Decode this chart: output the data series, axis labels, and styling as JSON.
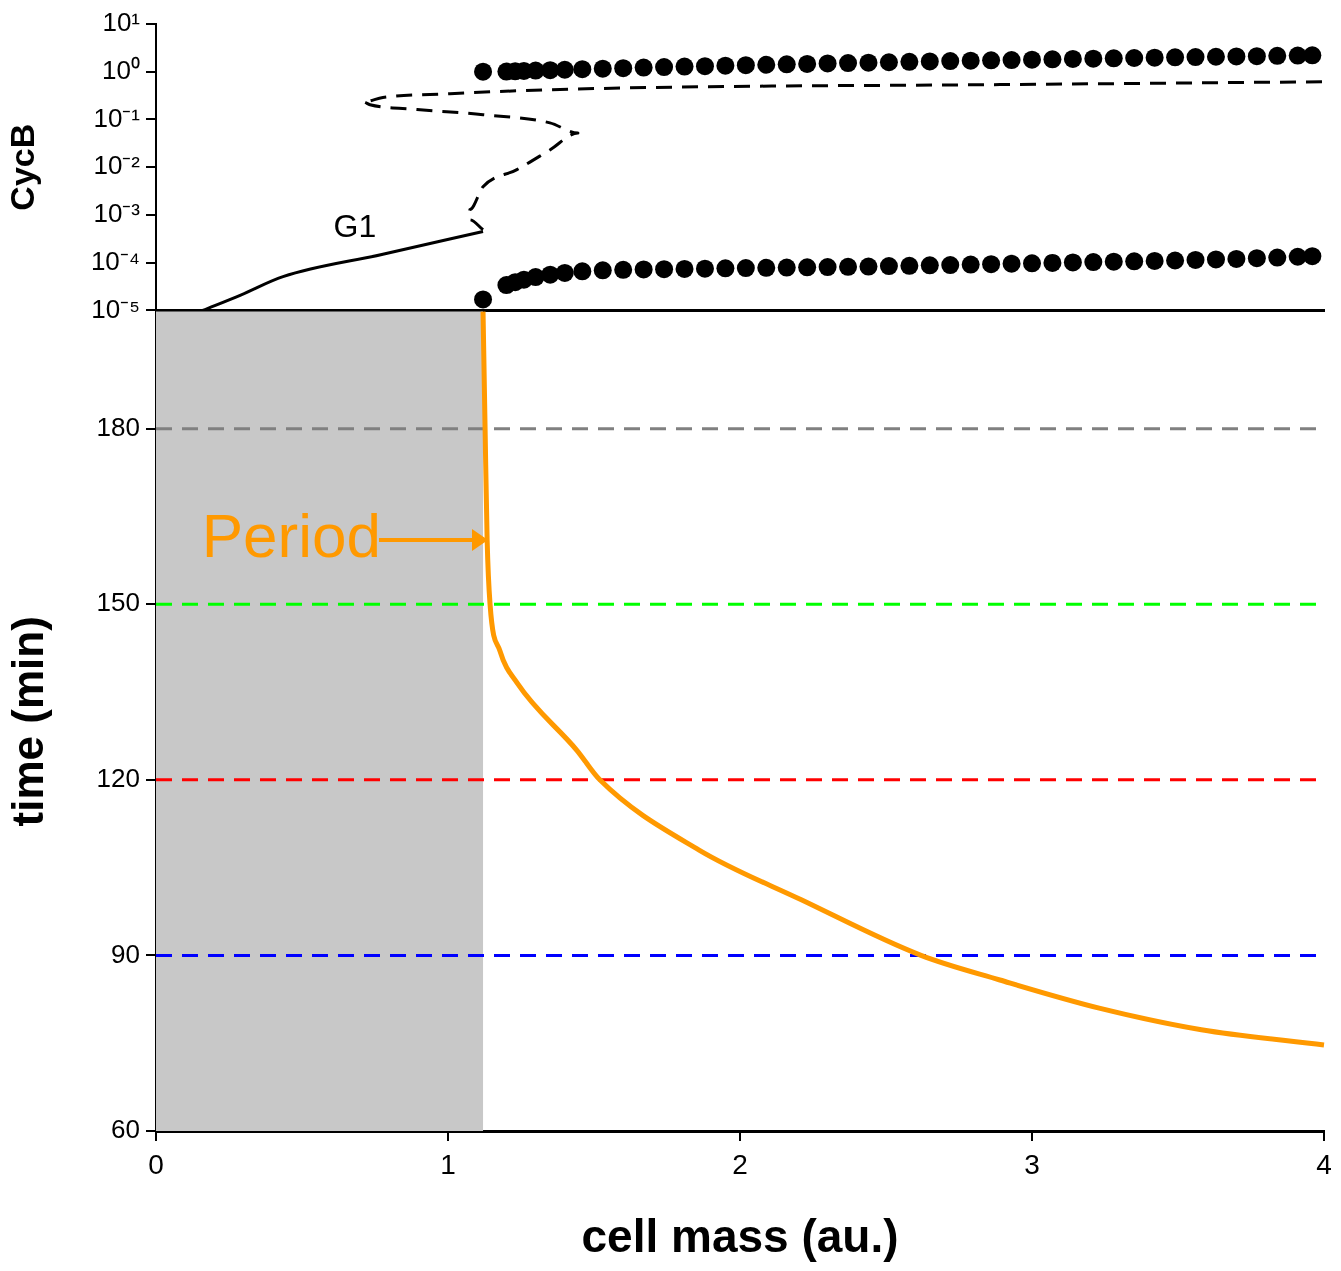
{
  "chart_data": [
    {
      "type": "line",
      "ylabel": "CycB",
      "log": "y",
      "xlim": [
        0,
        4
      ],
      "ylim": [
        1e-05,
        10
      ],
      "tick_labels": "y",
      "grid": false,
      "legend": false,
      "yticks": [
        {
          "value": 10,
          "label": "10¹"
        },
        {
          "value": 1,
          "label": "10⁰"
        },
        {
          "value": 0.1,
          "label": "10⁻¹"
        },
        {
          "value": 0.01,
          "label": "10⁻²"
        },
        {
          "value": 0.001,
          "label": "10⁻³"
        },
        {
          "value": 0.0001,
          "label": "10⁻⁴"
        },
        {
          "value": 1e-05,
          "label": "10⁻⁵"
        }
      ],
      "series": [
        {
          "type": "line",
          "name": "G1",
          "color": "#000000",
          "line_style": "solid",
          "x": [
            0.16,
            0.29,
            0.435,
            0.777,
            1.12
          ],
          "values": [
            1e-05,
            2.1e-05,
            5.1e-05,
            0.00015,
            0.00045
          ]
        },
        {
          "type": "line",
          "color": "#000000",
          "line_style": "dashed",
          "x": [
            1.12,
            1.075,
            1.075,
            1.12,
            1.236,
            1.349,
            1.445,
            1.349,
            1.12,
            0.894,
            0.733,
            0.709,
            0.777,
            1.007,
            1.236,
            1.692,
            2.89,
            4.0
          ],
          "values": [
            0.00049,
            0.00079,
            0.0013,
            0.0039,
            0.0089,
            0.023,
            0.052,
            0.085,
            0.126,
            0.162,
            0.204,
            0.234,
            0.288,
            0.347,
            0.398,
            0.468,
            0.537,
            0.617
          ]
        },
        {
          "type": "scatter",
          "color": "#000000",
          "marker": "circle",
          "x": [
            1.12,
            1.2,
            1.23,
            1.26,
            1.3,
            1.35,
            1.4,
            1.46,
            1.53,
            1.6,
            1.67,
            1.74,
            1.81,
            1.88,
            1.95,
            2.02,
            2.09,
            2.16,
            2.23,
            2.3,
            2.37,
            2.44,
            2.51,
            2.58,
            2.65,
            2.72,
            2.79,
            2.86,
            2.93,
            3.0,
            3.07,
            3.14,
            3.21,
            3.28,
            3.35,
            3.42,
            3.49,
            3.56,
            3.63,
            3.7,
            3.77,
            3.84,
            3.91,
            3.96
          ],
          "values": [
            1.0,
            1.01,
            1.02,
            1.04,
            1.06,
            1.08,
            1.1,
            1.13,
            1.16,
            1.19,
            1.22,
            1.25,
            1.28,
            1.31,
            1.34,
            1.37,
            1.4,
            1.43,
            1.46,
            1.49,
            1.52,
            1.55,
            1.58,
            1.61,
            1.64,
            1.67,
            1.7,
            1.73,
            1.76,
            1.79,
            1.82,
            1.85,
            1.88,
            1.91,
            1.94,
            1.97,
            2.0,
            2.03,
            2.06,
            2.09,
            2.12,
            2.15,
            2.18,
            2.21
          ]
        },
        {
          "type": "scatter",
          "color": "#000000",
          "marker": "circle",
          "x": [
            1.12,
            1.2,
            1.23,
            1.26,
            1.3,
            1.35,
            1.4,
            1.46,
            1.53,
            1.6,
            1.67,
            1.74,
            1.81,
            1.88,
            1.95,
            2.02,
            2.09,
            2.16,
            2.23,
            2.3,
            2.37,
            2.44,
            2.51,
            2.58,
            2.65,
            2.72,
            2.79,
            2.86,
            2.93,
            3.0,
            3.07,
            3.14,
            3.21,
            3.28,
            3.35,
            3.42,
            3.49,
            3.56,
            3.63,
            3.7,
            3.77,
            3.84,
            3.91,
            3.96
          ],
          "values": [
            1.7e-05,
            3.4e-05,
            3.9e-05,
            4.4e-05,
            5e-05,
            5.6e-05,
            6.1e-05,
            6.6e-05,
            6.9e-05,
            7.1e-05,
            7.2e-05,
            7.3e-05,
            7.4e-05,
            7.5e-05,
            7.6e-05,
            7.7e-05,
            7.8e-05,
            7.9e-05,
            8e-05,
            8.1e-05,
            8.2e-05,
            8.3e-05,
            8.5e-05,
            8.6e-05,
            8.8e-05,
            8.9e-05,
            9.1e-05,
            9.3e-05,
            9.5e-05,
            9.7e-05,
            9.9e-05,
            0.000101,
            0.000103,
            0.000105,
            0.000107,
            0.000109,
            0.000111,
            0.000114,
            0.000117,
            0.00012,
            0.000124,
            0.000128,
            0.000133,
            0.000137
          ]
        }
      ]
    },
    {
      "type": "line",
      "xlabel": "cell mass (au.)",
      "ylabel": "time (min)",
      "xlim": [
        0,
        4
      ],
      "xticks": [
        0,
        1,
        2,
        3,
        4
      ],
      "ylim": [
        60,
        200
      ],
      "yticks": [
        60,
        90,
        120,
        150,
        180
      ],
      "grid": false,
      "legend": false,
      "bands": [
        {
          "axis": "x",
          "from": 0,
          "to": 1.12,
          "color": "#c8c8c8"
        }
      ],
      "ref_lines": [
        {
          "axis": "y",
          "value": 180,
          "color": "#808080",
          "line_style": "dashed"
        },
        {
          "axis": "y",
          "value": 150,
          "color": "#00ff00",
          "line_style": "dashed"
        },
        {
          "axis": "y",
          "value": 120,
          "color": "#ff0000",
          "line_style": "dashed"
        },
        {
          "axis": "y",
          "value": 90,
          "color": "#0000ff",
          "line_style": "dashed"
        }
      ],
      "annotations": [
        {
          "text": "Period",
          "x": 1.14,
          "y": 161
        }
      ],
      "series": [
        {
          "type": "line",
          "color": "#ff9900",
          "line_style": "solid",
          "x": [
            1.12,
            1.127,
            1.134,
            1.144,
            1.178,
            1.236,
            1.442,
            1.52,
            1.86,
            2.21,
            2.62,
            2.89,
            3.23,
            3.58,
            4.0
          ],
          "values": [
            200,
            180,
            161,
            150,
            142,
            136.6,
            125,
            120,
            108,
            99.5,
            90,
            85.8,
            81,
            77.3,
            74.7
          ]
        }
      ]
    }
  ]
}
